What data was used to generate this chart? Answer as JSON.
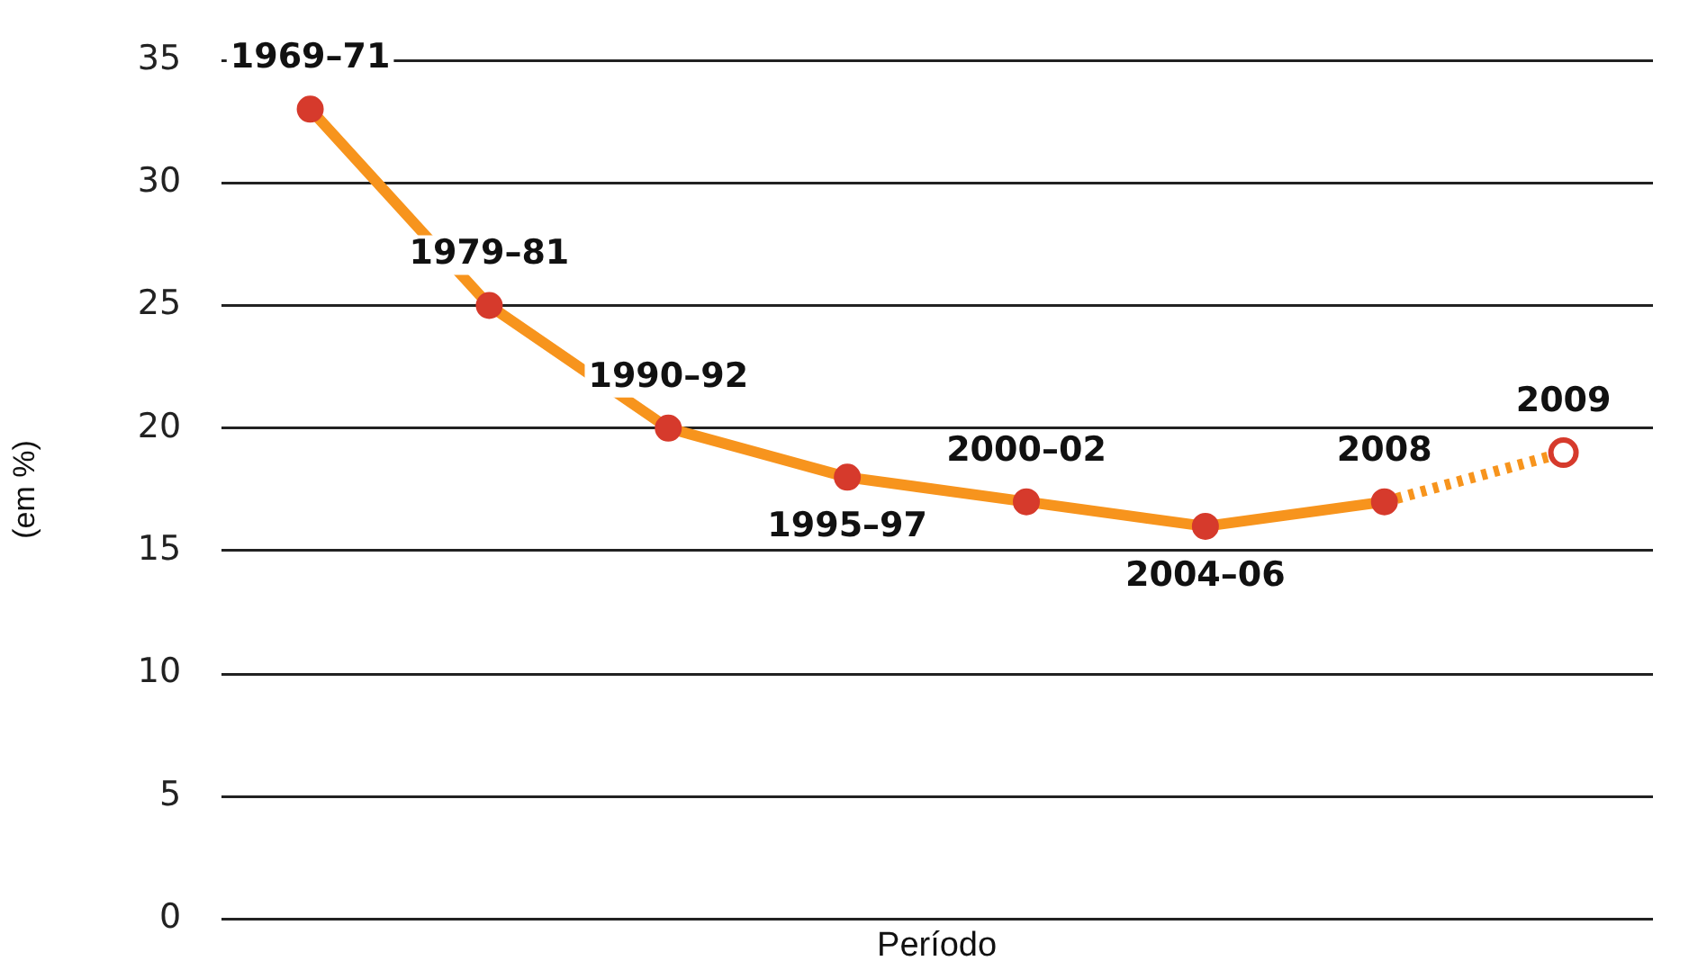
{
  "chart_data": {
    "type": "line",
    "xlabel": "Período",
    "ylabel": "(em %)",
    "categories": [
      "1969–71",
      "1979–81",
      "1990–92",
      "1995–97",
      "2000–02",
      "2004–06",
      "2008",
      "2009"
    ],
    "ylim": [
      0,
      35
    ],
    "yticks": [
      0,
      5,
      10,
      15,
      20,
      25,
      30,
      35
    ],
    "grid": "y",
    "tick_labels": "y",
    "legend": false,
    "marker": "circle",
    "series": [
      {
        "color": "#f7941d",
        "colors": [
          "#d63a2c",
          "#d63a2c",
          "#d63a2c",
          "#d63a2c",
          "#d63a2c",
          "#d63a2c",
          "#d63a2c",
          null
        ],
        "line_style": "solid",
        "values": [
          33,
          25,
          20,
          18,
          17,
          16,
          17,
          null
        ]
      },
      {
        "color": "#f7941d",
        "colors": [
          null,
          null,
          null,
          null,
          null,
          null,
          "#d63a2c",
          "#d63a2c"
        ],
        "line_style": "dotted",
        "values": [
          null,
          null,
          null,
          null,
          null,
          null,
          17,
          19
        ]
      }
    ]
  }
}
